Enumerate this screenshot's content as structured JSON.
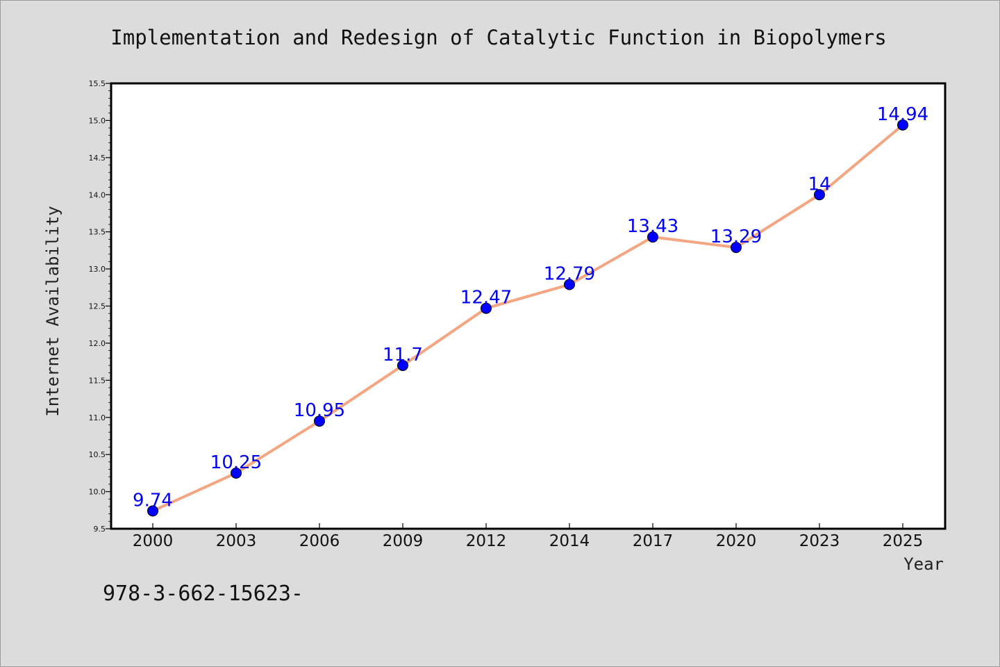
{
  "chart_data": {
    "type": "line",
    "title": "Implementation and Redesign of Catalytic Function in Biopolymers",
    "xlabel": "Year",
    "ylabel": "Internet Availability",
    "categories": [
      "2000",
      "2003",
      "2006",
      "2009",
      "2012",
      "2014",
      "2017",
      "2020",
      "2023",
      "2025"
    ],
    "series": [
      {
        "values": [
          9.74,
          10.25,
          10.95,
          11.7,
          12.47,
          12.79,
          13.43,
          13.29,
          14,
          14.94
        ],
        "labels": [
          "9.74",
          "10.25",
          "10.95",
          "11.7",
          "12.47",
          "12.79",
          "13.43",
          "13.29",
          "14",
          "14.94"
        ]
      }
    ],
    "ylim": [
      9.5,
      15.5
    ],
    "yticks": [
      "9.5",
      "10.0",
      "10.5",
      "11.0",
      "11.5",
      "12.0",
      "12.5",
      "13.0",
      "13.5",
      "14.0",
      "14.5",
      "15.0",
      "15.5"
    ],
    "grid": false,
    "colors": {
      "line": "#f4a582",
      "marker": "#0000ff",
      "label": "#0000ee"
    }
  },
  "footer": {
    "text": "978-3-662-15623-"
  }
}
